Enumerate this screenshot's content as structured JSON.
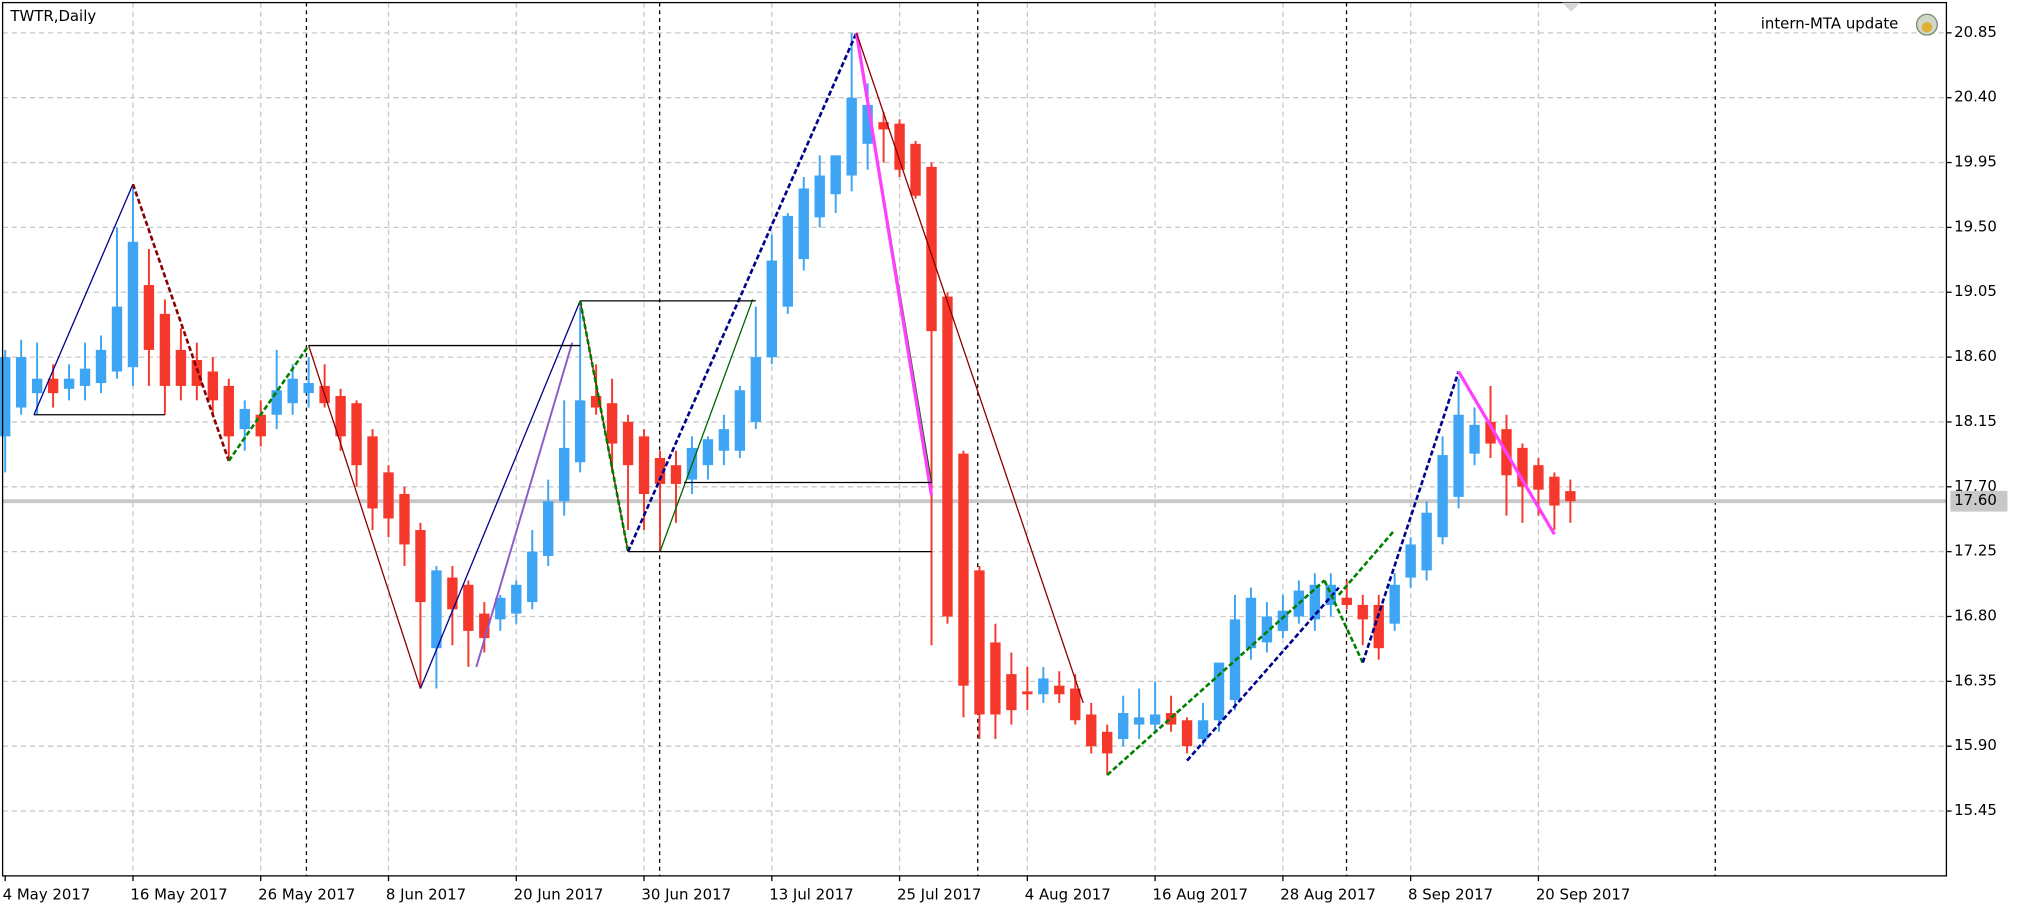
{
  "chart_data": {
    "type": "candlestick",
    "title": "TWTR,Daily",
    "annotation": "intern-MTA update",
    "up_color": "#3da5f4",
    "down_color": "#f5382b",
    "grid": true,
    "categories": [
      "4 May 2017",
      null,
      null,
      null,
      null,
      null,
      null,
      null,
      "16 May 2017",
      null,
      null,
      null,
      null,
      null,
      null,
      null,
      "26 May 2017",
      null,
      null,
      null,
      null,
      null,
      null,
      null,
      "8 Jun 2017",
      null,
      null,
      null,
      null,
      null,
      null,
      null,
      "20 Jun 2017",
      null,
      null,
      null,
      null,
      null,
      null,
      null,
      "30 Jun 2017",
      null,
      null,
      null,
      null,
      null,
      null,
      null,
      "13 Jul 2017",
      null,
      null,
      null,
      null,
      null,
      null,
      null,
      "25 Jul 2017",
      null,
      null,
      null,
      null,
      null,
      null,
      null,
      "4 Aug 2017",
      null,
      null,
      null,
      null,
      null,
      null,
      null,
      "16 Aug 2017",
      null,
      null,
      null,
      null,
      null,
      null,
      null,
      "28 Aug 2017",
      null,
      null,
      null,
      null,
      null,
      null,
      null,
      "8 Sep 2017",
      null,
      null,
      null,
      null,
      null,
      null,
      null,
      "20 Sep 2017",
      null,
      null
    ],
    "open": [
      18.05,
      18.25,
      18.35,
      18.45,
      18.38,
      18.4,
      18.42,
      18.5,
      18.53,
      19.1,
      18.9,
      18.65,
      18.58,
      18.5,
      18.4,
      18.1,
      18.2,
      18.2,
      18.28,
      18.35,
      18.4,
      18.33,
      18.28,
      18.05,
      17.8,
      17.65,
      17.4,
      16.58,
      17.07,
      17.02,
      16.82,
      16.78,
      16.82,
      16.9,
      17.22,
      17.6,
      17.87,
      18.33,
      18.28,
      18.15,
      18.05,
      17.9,
      17.85,
      17.75,
      17.85,
      17.95,
      17.95,
      18.15,
      18.6,
      18.95,
      19.28,
      19.57,
      19.73,
      19.86,
      20.08,
      20.23,
      20.22,
      20.08,
      19.92,
      19.02,
      17.93,
      17.12,
      16.62,
      16.4,
      16.28,
      16.26,
      16.32,
      16.3,
      16.12,
      16.0,
      15.95,
      16.05,
      16.05,
      16.13,
      16.08,
      15.95,
      16.08,
      16.22,
      16.58,
      16.62,
      16.7,
      16.8,
      16.78,
      16.88,
      16.93,
      16.88,
      16.88,
      16.75,
      17.07,
      17.12,
      17.35,
      17.63,
      17.93,
      18.15,
      18.1,
      17.97,
      17.85,
      17.77,
      17.67
    ],
    "high": [
      18.65,
      18.72,
      18.7,
      18.55,
      18.55,
      18.7,
      18.75,
      19.5,
      19.78,
      19.35,
      19.0,
      18.8,
      18.7,
      18.6,
      18.45,
      18.3,
      18.3,
      18.65,
      18.55,
      18.6,
      18.55,
      18.38,
      18.3,
      18.1,
      17.85,
      17.7,
      17.45,
      17.15,
      17.15,
      17.05,
      16.9,
      16.95,
      17.05,
      17.4,
      17.75,
      18.3,
      18.95,
      18.55,
      18.45,
      18.2,
      18.1,
      17.95,
      17.95,
      18.05,
      18.05,
      18.2,
      18.4,
      18.95,
      19.45,
      19.6,
      19.85,
      20.0,
      20.0,
      20.85,
      20.5,
      20.3,
      20.25,
      20.1,
      19.95,
      19.05,
      17.95,
      17.15,
      16.75,
      16.55,
      16.45,
      16.45,
      16.42,
      16.4,
      16.2,
      16.05,
      16.25,
      16.3,
      16.35,
      16.25,
      16.1,
      16.2,
      16.45,
      16.95,
      17.0,
      16.9,
      16.95,
      17.05,
      17.1,
      17.1,
      17.05,
      16.95,
      16.95,
      17.1,
      17.35,
      17.6,
      18.05,
      18.45,
      18.25,
      18.4,
      18.2,
      18.0,
      17.9,
      17.8,
      17.75
    ],
    "low": [
      17.8,
      18.2,
      18.2,
      18.25,
      18.3,
      18.3,
      18.35,
      18.45,
      18.4,
      18.4,
      18.2,
      18.3,
      18.3,
      18.2,
      17.9,
      17.95,
      17.98,
      18.1,
      18.2,
      18.25,
      18.25,
      17.95,
      17.7,
      17.4,
      17.35,
      17.15,
      16.3,
      16.3,
      16.6,
      16.45,
      16.55,
      16.7,
      16.75,
      16.85,
      17.15,
      17.5,
      17.8,
      18.2,
      17.8,
      17.4,
      17.4,
      17.25,
      17.45,
      17.65,
      17.75,
      17.85,
      17.9,
      18.1,
      18.55,
      18.9,
      19.2,
      19.5,
      19.6,
      19.75,
      19.9,
      19.95,
      19.85,
      19.7,
      16.6,
      16.75,
      16.1,
      15.95,
      15.95,
      16.05,
      16.15,
      16.2,
      16.2,
      16.05,
      15.85,
      15.7,
      15.9,
      15.95,
      16.0,
      16.0,
      15.85,
      15.9,
      16.0,
      16.15,
      16.5,
      16.55,
      16.65,
      16.75,
      16.7,
      16.8,
      16.85,
      16.6,
      16.5,
      16.7,
      17.0,
      17.05,
      17.3,
      17.55,
      17.85,
      17.9,
      17.5,
      17.45,
      17.5,
      17.4,
      17.45
    ],
    "close": [
      18.6,
      18.6,
      18.45,
      18.35,
      18.45,
      18.52,
      18.65,
      18.95,
      19.4,
      18.65,
      18.4,
      18.4,
      18.4,
      18.3,
      18.05,
      18.24,
      18.05,
      18.37,
      18.45,
      18.42,
      18.28,
      18.05,
      17.85,
      17.55,
      17.48,
      17.3,
      16.9,
      17.12,
      16.85,
      16.7,
      16.65,
      16.93,
      17.02,
      17.25,
      17.6,
      17.97,
      18.3,
      18.25,
      18.0,
      17.85,
      17.65,
      17.72,
      17.72,
      17.97,
      18.03,
      18.1,
      18.37,
      18.6,
      19.27,
      19.58,
      19.77,
      19.86,
      20.0,
      20.4,
      20.35,
      20.18,
      19.9,
      19.72,
      18.78,
      16.8,
      16.32,
      16.12,
      16.12,
      16.15,
      16.26,
      16.37,
      16.26,
      16.08,
      15.9,
      15.85,
      16.13,
      16.1,
      16.12,
      16.05,
      15.9,
      16.08,
      16.48,
      16.78,
      16.93,
      16.8,
      16.84,
      16.98,
      17.02,
      17.02,
      16.88,
      16.78,
      16.58,
      17.02,
      17.3,
      17.52,
      17.92,
      18.2,
      18.13,
      18.0,
      17.78,
      17.7,
      17.68,
      17.57,
      17.6
    ],
    "ylim": [
      15.0,
      21.06
    ],
    "yticks": [
      20.85,
      {
        "value": 20.4,
        "label": "20.40"
      },
      19.95,
      {
        "value": 19.5,
        "label": "19.50"
      },
      19.05,
      {
        "value": 18.6,
        "label": "18.60"
      },
      18.15,
      {
        "value": 17.7,
        "label": "17.70"
      },
      17.25,
      {
        "value": 16.8,
        "label": "16.80"
      },
      16.35,
      {
        "value": 15.9,
        "label": "15.90"
      },
      15.45
    ],
    "current_price": {
      "value": 17.6,
      "label": "17.60"
    },
    "lines": [
      {
        "color": "#00008b",
        "width": 1,
        "dash": false,
        "x": [
          1.8,
          8
        ],
        "y": [
          18.2,
          19.8
        ]
      },
      {
        "color": "#8b0000",
        "width": 2,
        "dash": true,
        "x": [
          8,
          14
        ],
        "y": [
          19.8,
          17.88
        ]
      },
      {
        "color": "#008000",
        "width": 2,
        "dash": true,
        "x": [
          14,
          19
        ],
        "y": [
          17.88,
          18.68
        ]
      },
      {
        "color": "#8b0000",
        "width": 1,
        "dash": false,
        "x": [
          19,
          26
        ],
        "y": [
          18.68,
          16.3
        ]
      },
      {
        "color": "#00008b",
        "width": 1,
        "dash": false,
        "x": [
          26,
          36
        ],
        "y": [
          16.3,
          18.99
        ]
      },
      {
        "color": "#8a5cc8",
        "width": 1.5,
        "dash": false,
        "x": [
          29.5,
          35.5
        ],
        "y": [
          16.45,
          18.7
        ]
      },
      {
        "color": "#8b0000",
        "width": 1,
        "dash": false,
        "x": [
          36,
          39
        ],
        "y": [
          18.99,
          17.25
        ]
      },
      {
        "color": "#008000",
        "width": 2,
        "dash": true,
        "x": [
          36,
          39
        ],
        "y": [
          18.99,
          17.25
        ]
      },
      {
        "color": "#00008b",
        "width": 2,
        "dash": true,
        "x": [
          39,
          53.3
        ],
        "y": [
          17.25,
          20.85
        ]
      },
      {
        "color": "#006400",
        "width": 1,
        "dash": false,
        "x": [
          41,
          46.8
        ],
        "y": [
          17.25,
          19.0
        ]
      },
      {
        "color": "#006400",
        "width": 1,
        "dash": false,
        "x": [
          53.3,
          58
        ],
        "y": [
          20.85,
          17.73
        ]
      },
      {
        "color": "#ff40ff",
        "width": 2.5,
        "dash": false,
        "x": [
          53.3,
          58
        ],
        "y": [
          20.85,
          17.64
        ]
      },
      {
        "color": "#8b0000",
        "width": 1,
        "dash": false,
        "x": [
          53.3,
          67.5
        ],
        "y": [
          20.85,
          16.2
        ]
      },
      {
        "color": "#008000",
        "width": 2,
        "dash": true,
        "x": [
          69,
          82.6
        ],
        "y": [
          15.7,
          17.05
        ]
      },
      {
        "color": "#00008b",
        "width": 2,
        "dash": true,
        "x": [
          74,
          83.5
        ],
        "y": [
          15.8,
          17.0
        ]
      },
      {
        "color": "#008000",
        "width": 2,
        "dash": true,
        "x": [
          82.6,
          85
        ],
        "y": [
          17.05,
          16.48
        ]
      },
      {
        "color": "#008000",
        "width": 2,
        "dash": true,
        "x": [
          83.5,
          87
        ],
        "y": [
          16.95,
          17.4
        ]
      },
      {
        "color": "#00008b",
        "width": 2,
        "dash": true,
        "x": [
          85,
          91
        ],
        "y": [
          16.48,
          18.5
        ]
      },
      {
        "color": "#ff40ff",
        "width": 2.5,
        "dash": false,
        "x": [
          91,
          97
        ],
        "y": [
          18.5,
          17.37
        ]
      },
      {
        "color": "#000000",
        "width": 1,
        "dash": false,
        "x": [
          1.8,
          10
        ],
        "y": [
          18.2,
          18.2
        ]
      },
      {
        "color": "#000000",
        "width": 1,
        "dash": false,
        "x": [
          19,
          36
        ],
        "y": [
          18.68,
          18.68
        ]
      },
      {
        "color": "#000000",
        "width": 1,
        "dash": false,
        "x": [
          36,
          47
        ],
        "y": [
          18.99,
          18.99
        ]
      },
      {
        "color": "#000000",
        "width": 1,
        "dash": false,
        "x": [
          42.5,
          58
        ],
        "y": [
          17.73,
          17.73
        ]
      },
      {
        "color": "#000000",
        "width": 1,
        "dash": false,
        "x": [
          39,
          58
        ],
        "y": [
          17.25,
          17.25
        ]
      }
    ]
  }
}
